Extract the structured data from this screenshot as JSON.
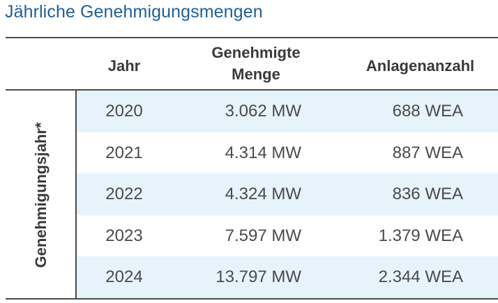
{
  "title": "Jährliche Genehmigungsmengen",
  "table": {
    "row_group_label": "Genehmigungsjahr*",
    "headers": {
      "jahr": "Jahr",
      "menge_line1": "Genehmigte",
      "menge_line2": "Menge",
      "anlagen": "Anlagenanzahl"
    },
    "rows": [
      {
        "jahr": "2020",
        "menge": "3.062 MW",
        "anlagen": "688 WEA"
      },
      {
        "jahr": "2021",
        "menge": "4.314 MW",
        "anlagen": "887 WEA"
      },
      {
        "jahr": "2022",
        "menge": "4.324 MW",
        "anlagen": "836 WEA"
      },
      {
        "jahr": "2023",
        "menge": "7.597 MW",
        "anlagen": "1.379 WEA"
      },
      {
        "jahr": "2024",
        "menge": "13.797 MW",
        "anlagen": "2.344 WEA"
      }
    ]
  },
  "colors": {
    "title": "#1f5f96",
    "row_shade": "#e7f3fb",
    "rules": "#4a4a4a"
  }
}
